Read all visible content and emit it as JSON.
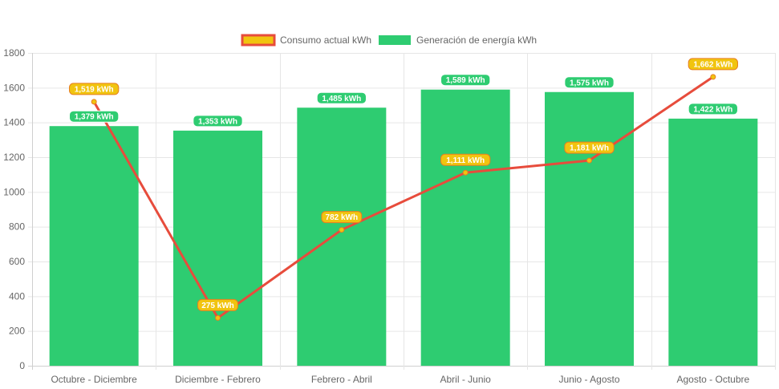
{
  "chart_data": {
    "type": "bar",
    "title": "",
    "xlabel": "",
    "ylabel": "",
    "categories": [
      "Octubre - Diciembre",
      "Diciembre - Febrero",
      "Febrero - Abril",
      "Abril - Junio",
      "Junio - Agosto",
      "Agosto - Octubre"
    ],
    "ylim": [
      0,
      1800
    ],
    "yticks": [
      "0",
      "200",
      "400",
      "600",
      "800",
      "1000",
      "1200",
      "1400",
      "1600",
      "1800"
    ],
    "yticks_values": [
      0,
      200,
      400,
      600,
      800,
      1000,
      1200,
      1400,
      1600,
      1800
    ],
    "grid": true,
    "legend_position": "top-center",
    "series": [
      {
        "name": "Consumo actual kWh",
        "kind": "line",
        "color": "#e74c3c",
        "label_bg": "#f1c40f",
        "label_border": "#e67e22",
        "values": [
          1519,
          275,
          782,
          1111,
          1181,
          1662
        ],
        "labels": [
          "1,519 kWh",
          "275 kWh",
          "782 kWh",
          "1,111 kWh",
          "1,181 kWh",
          "1,662 kWh"
        ]
      },
      {
        "name": "Generación de energía kWh",
        "kind": "bar",
        "color": "#2ecc71",
        "label_bg": "#2ecc71",
        "label_border": "#ffffff",
        "values": [
          1379,
          1353,
          1485,
          1589,
          1575,
          1422
        ],
        "labels": [
          "1,379 kWh",
          "1,353 kWh",
          "1,485 kWh",
          "1,589 kWh",
          "1,575 kWh",
          "1,422 kWh"
        ]
      }
    ]
  }
}
